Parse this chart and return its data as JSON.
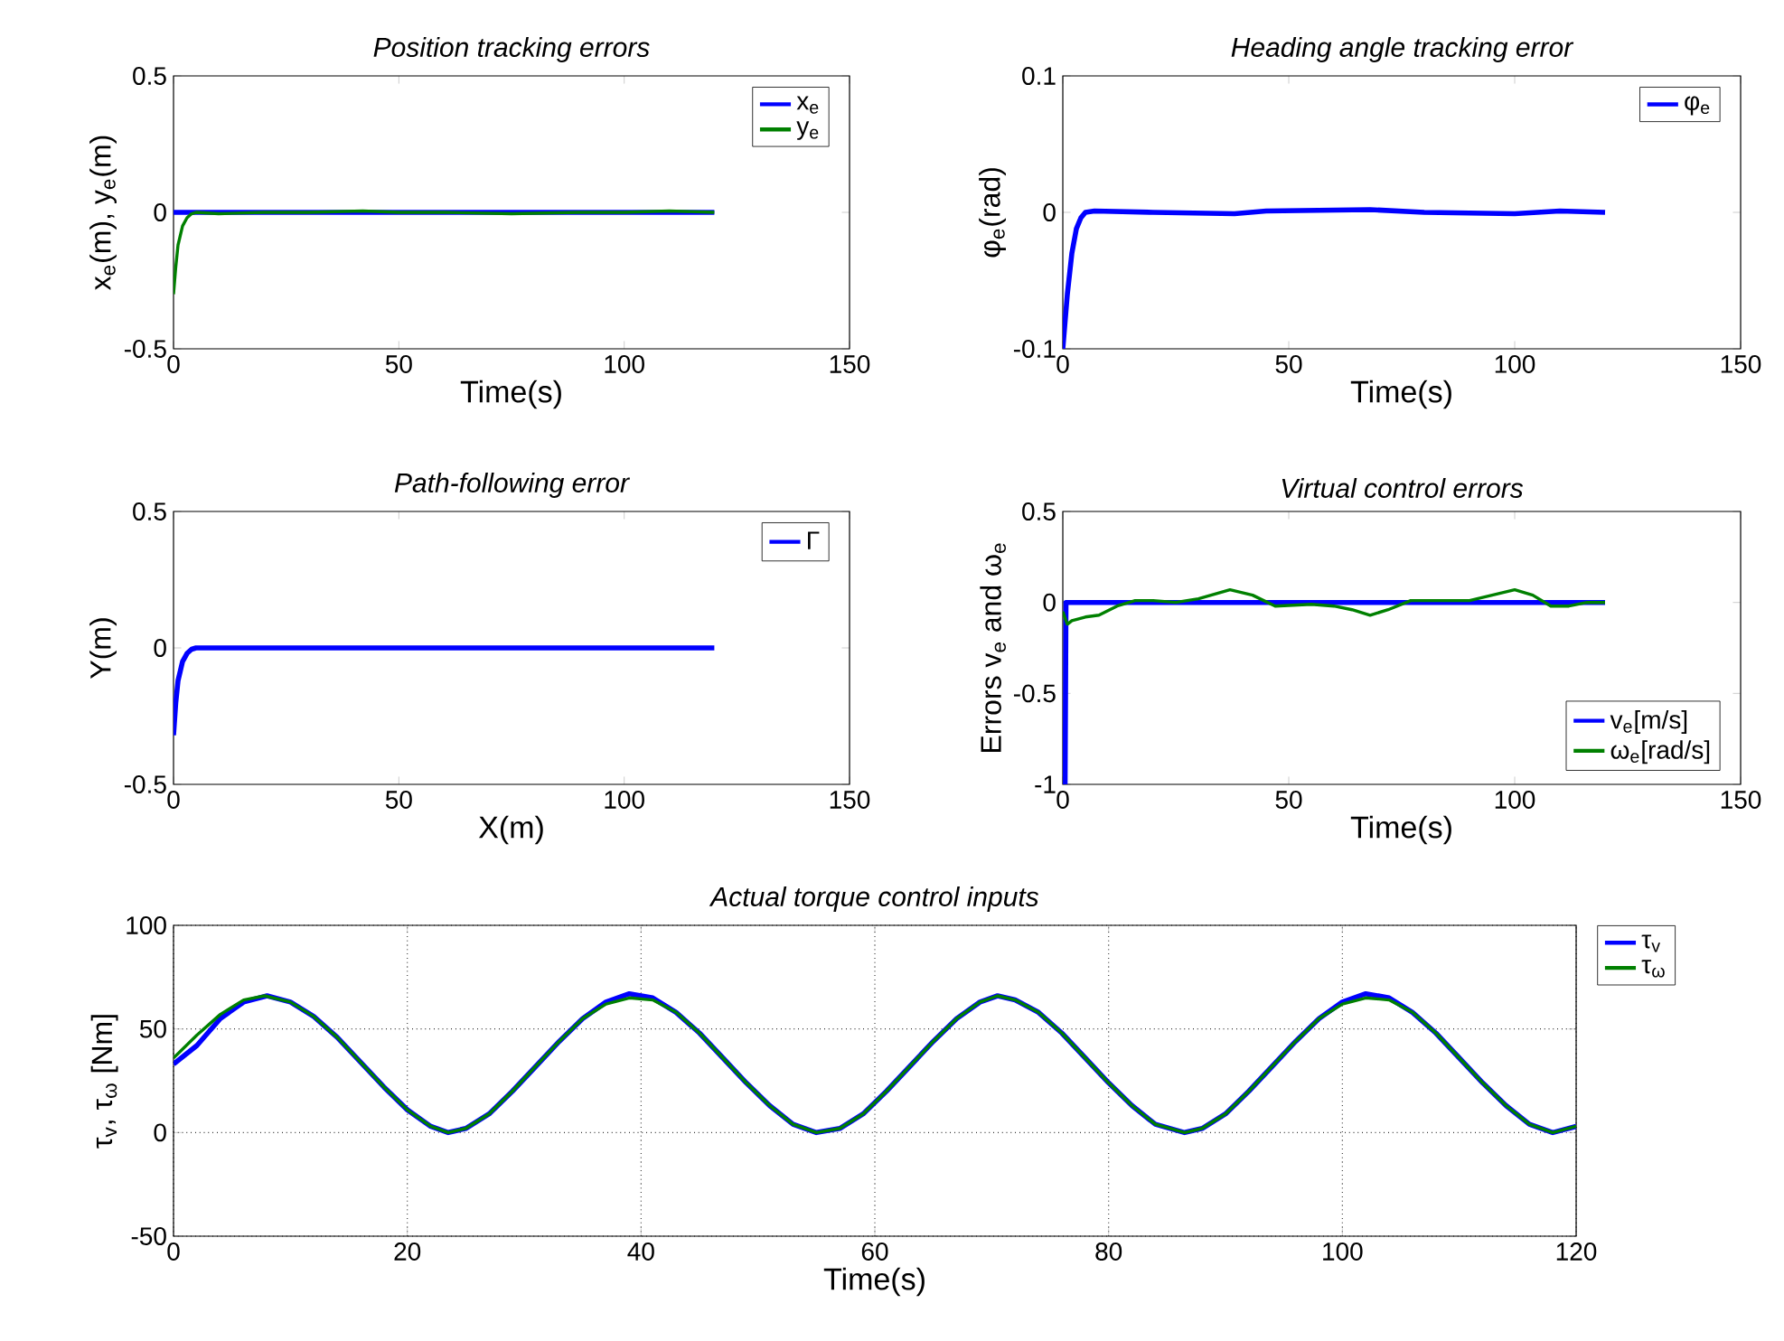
{
  "chart_data": [
    {
      "type": "line",
      "title": "Position tracking errors",
      "xlabel": "Time(s)",
      "ylabel": "x$_{e}$(m), y$_{e}$(m)",
      "xlim": [
        0,
        150
      ],
      "xticks": [
        0,
        50,
        100,
        150
      ],
      "ylim": [
        -0.5,
        0.5
      ],
      "yticks": [
        -0.5,
        0,
        0.5
      ],
      "legend": "top right",
      "series": [
        {
          "name": "x$_{e}$",
          "color": "#0000ff",
          "x": [
            0,
            120
          ],
          "values": [
            0,
            0
          ]
        },
        {
          "name": "y$_{e}$",
          "color": "#008000",
          "x": [
            0,
            0.5,
            1,
            2,
            3,
            4,
            5,
            10,
            20,
            30,
            42,
            50,
            60,
            75,
            90,
            100,
            110,
            120
          ],
          "values": [
            -0.3,
            -0.2,
            -0.12,
            -0.05,
            -0.02,
            -0.005,
            0,
            -0.005,
            0,
            0,
            0.005,
            0,
            0,
            -0.005,
            0,
            0,
            0.005,
            0
          ]
        }
      ]
    },
    {
      "type": "line",
      "title": "Heading angle tracking error",
      "xlabel": "Time(s)",
      "ylabel": "φ$_{e}$(rad)",
      "xlim": [
        0,
        150
      ],
      "xticks": [
        0,
        50,
        100,
        150
      ],
      "ylim": [
        -0.1,
        0.1
      ],
      "yticks": [
        -0.1,
        0,
        0.1
      ],
      "legend": "top right",
      "series": [
        {
          "name": "φ$_{e}$",
          "color": "#0000ff",
          "x": [
            0,
            1,
            2,
            3,
            4,
            5,
            7,
            20,
            38,
            45,
            68,
            80,
            100,
            110,
            120
          ],
          "values": [
            -0.1,
            -0.06,
            -0.03,
            -0.012,
            -0.004,
            0,
            0.001,
            0,
            -0.001,
            0.001,
            0.002,
            0,
            -0.001,
            0.001,
            0
          ]
        }
      ]
    },
    {
      "type": "line",
      "title": "Path-following error",
      "xlabel": "X(m)",
      "ylabel": "Y(m)",
      "xlim": [
        0,
        150
      ],
      "xticks": [
        0,
        50,
        100,
        150
      ],
      "ylim": [
        -0.5,
        0.5
      ],
      "yticks": [
        -0.5,
        0,
        0.5
      ],
      "legend": "top right",
      "series": [
        {
          "name": "Γ",
          "color": "#0000ff",
          "x": [
            0,
            0.5,
            1,
            2,
            3,
            4,
            5,
            120
          ],
          "values": [
            -0.32,
            -0.2,
            -0.12,
            -0.05,
            -0.02,
            -0.005,
            0,
            0
          ]
        }
      ]
    },
    {
      "type": "line",
      "title": "Virtual control errors",
      "xlabel": "Time(s)",
      "ylabel": "Errors v$_{e}$ and ω$_{e}$",
      "xlim": [
        0,
        150
      ],
      "xticks": [
        0,
        50,
        100,
        150
      ],
      "ylim": [
        -1,
        0.5
      ],
      "yticks": [
        -1,
        -0.5,
        0,
        0.5
      ],
      "legend": "bottom right",
      "series": [
        {
          "name": "v$_{e}$[m/s]",
          "color": "#0000ff",
          "x": [
            0.5,
            0.7,
            120
          ],
          "values": [
            -1,
            0,
            0
          ]
        },
        {
          "name": "ω$_{e}$[rad/s]",
          "color": "#008000",
          "x": [
            0,
            1,
            2,
            5,
            8,
            12,
            16,
            20,
            25,
            30,
            37,
            42,
            47,
            55,
            60,
            64,
            68,
            72,
            77,
            82,
            90,
            95,
            100,
            104,
            108,
            112,
            116,
            120
          ],
          "values": [
            -0.05,
            -0.12,
            -0.1,
            -0.08,
            -0.07,
            -0.02,
            0.01,
            0.01,
            0,
            0.02,
            0.07,
            0.04,
            -0.02,
            -0.01,
            -0.02,
            -0.04,
            -0.07,
            -0.04,
            0.01,
            0.01,
            0.01,
            0.04,
            0.07,
            0.04,
            -0.02,
            -0.02,
            0,
            0
          ]
        }
      ]
    },
    {
      "type": "line",
      "title": "Actual torque control inputs",
      "xlabel": "Time(s)",
      "ylabel": "τ$_{v}$, τ$_{ω}$ [Nm]",
      "xlim": [
        0,
        120
      ],
      "xticks": [
        0,
        20,
        40,
        60,
        80,
        100,
        120
      ],
      "ylim": [
        -50,
        100
      ],
      "yticks": [
        -50,
        0,
        50,
        100
      ],
      "grid": true,
      "legend": "right",
      "series": [
        {
          "name": "τ$_{v}$",
          "color": "#0000ff",
          "x": [
            0,
            2,
            4,
            6,
            8,
            10,
            12,
            14,
            16,
            18,
            20,
            22,
            23.5,
            25,
            27,
            29,
            31,
            33,
            35,
            37,
            39,
            41,
            43,
            45,
            47,
            49,
            51,
            53,
            55,
            57,
            59,
            61,
            63,
            65,
            67,
            69,
            70.5,
            72,
            74,
            76,
            78,
            80,
            82,
            84,
            86.5,
            88,
            90,
            92,
            94,
            96,
            98,
            100,
            102,
            104,
            106,
            108,
            110,
            112,
            114,
            116,
            118,
            120
          ],
          "values": [
            33,
            42,
            55,
            63,
            66,
            63,
            56,
            46,
            34,
            22,
            11,
            3,
            0,
            2,
            9,
            20,
            32,
            44,
            55,
            63,
            67,
            65,
            58,
            48,
            36,
            24,
            13,
            4,
            0,
            2,
            9,
            20,
            32,
            44,
            55,
            63,
            66,
            64,
            58,
            48,
            36,
            24,
            13,
            4,
            0,
            2,
            9,
            20,
            32,
            44,
            55,
            63,
            67,
            65,
            58,
            48,
            36,
            24,
            13,
            4,
            0,
            3
          ]
        },
        {
          "name": "τ$_{ω}$",
          "color": "#008000",
          "x": [
            0,
            2,
            4,
            6,
            7.8,
            10,
            12,
            14,
            16,
            18,
            20,
            22,
            23.5,
            25,
            27,
            29,
            31,
            33,
            35,
            37,
            39,
            41,
            43,
            45,
            47,
            49,
            51,
            53,
            55,
            57,
            59,
            61,
            63,
            65,
            67,
            69,
            70.5,
            72,
            74,
            76,
            78,
            80,
            82,
            84,
            86.5,
            88,
            90,
            92,
            94,
            96,
            98,
            100,
            102,
            104,
            106,
            108,
            110,
            112,
            114,
            116,
            118,
            120
          ],
          "values": [
            36,
            47,
            57,
            64,
            66,
            63,
            56,
            46,
            34,
            22,
            11,
            3,
            0,
            2,
            9,
            20,
            32,
            44,
            55,
            62,
            65,
            64,
            58,
            48,
            36,
            24,
            13,
            4,
            0,
            2,
            9,
            20,
            32,
            44,
            55,
            63,
            66,
            64,
            58,
            48,
            36,
            24,
            13,
            4,
            0,
            2,
            9,
            20,
            32,
            44,
            55,
            62,
            65,
            64,
            58,
            48,
            36,
            24,
            13,
            4,
            0,
            3
          ]
        }
      ]
    }
  ]
}
